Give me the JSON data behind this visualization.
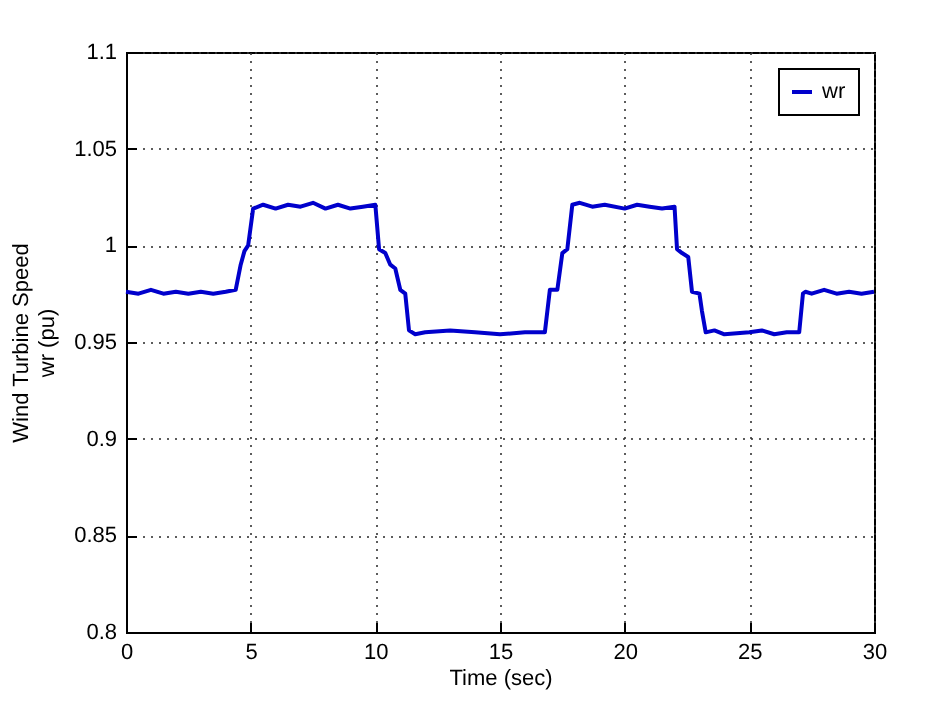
{
  "chart_data": {
    "type": "line",
    "xlabel": "Time (sec)",
    "ylabel": "Wind Turbine Speed\nwr (pu)",
    "series": [
      {
        "name": "wr",
        "color": "#0000cc",
        "x": [
          0,
          0.5,
          1,
          1.5,
          2,
          2.5,
          3,
          3.5,
          4,
          4.4,
          4.6,
          4.75,
          4.9,
          5.1,
          5.5,
          6,
          6.5,
          7,
          7.5,
          8,
          8.5,
          9,
          9.5,
          10,
          10.15,
          10.4,
          10.6,
          10.8,
          11,
          11.2,
          11.35,
          11.6,
          12,
          13,
          14,
          15,
          16,
          16.5,
          16.8,
          17,
          17.3,
          17.5,
          17.7,
          17.9,
          18.2,
          18.7,
          19.2,
          20,
          20.5,
          21,
          21.5,
          22,
          22.1,
          22.3,
          22.55,
          22.7,
          23,
          23.1,
          23.25,
          23.6,
          24,
          25,
          25.5,
          26,
          26.5,
          27,
          27.15,
          27.25,
          27.5,
          28,
          28.5,
          29,
          29.5,
          30
        ],
        "values": [
          0.976,
          0.975,
          0.977,
          0.975,
          0.976,
          0.975,
          0.976,
          0.975,
          0.976,
          0.977,
          0.99,
          0.997,
          1.0,
          1.019,
          1.021,
          1.019,
          1.021,
          1.02,
          1.022,
          1.019,
          1.021,
          1.019,
          1.02,
          1.021,
          0.998,
          0.996,
          0.99,
          0.988,
          0.977,
          0.975,
          0.956,
          0.954,
          0.955,
          0.956,
          0.955,
          0.954,
          0.955,
          0.955,
          0.955,
          0.977,
          0.977,
          0.996,
          0.998,
          1.021,
          1.022,
          1.02,
          1.021,
          1.019,
          1.021,
          1.02,
          1.019,
          1.02,
          0.998,
          0.996,
          0.994,
          0.976,
          0.975,
          0.966,
          0.955,
          0.956,
          0.954,
          0.955,
          0.956,
          0.954,
          0.955,
          0.955,
          0.975,
          0.976,
          0.975,
          0.977,
          0.975,
          0.976,
          0.975,
          0.976
        ]
      }
    ],
    "xlim": [
      0,
      30
    ],
    "xticks": [
      0,
      5,
      10,
      15,
      20,
      25,
      30
    ],
    "ylim": [
      0.8,
      1.1
    ],
    "yticks": [
      0.8,
      0.85,
      0.9,
      0.95,
      1,
      1.05,
      1.1
    ],
    "grid": true,
    "legend": "top right",
    "line_style": "solid",
    "marker": "none"
  }
}
